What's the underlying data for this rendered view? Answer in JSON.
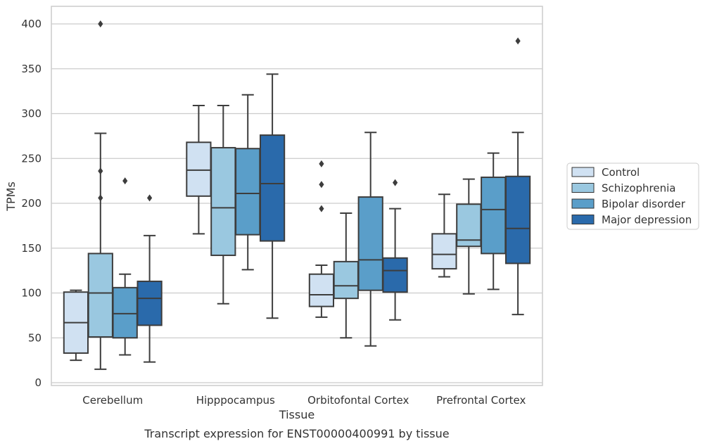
{
  "caption": "Transcript expression for ENST00000400991 by tissue",
  "chart_data": {
    "type": "box",
    "xlabel": "Tissue",
    "ylabel": "TPMs",
    "ylim": [
      0,
      400
    ],
    "yticks": [
      0,
      50,
      100,
      150,
      200,
      250,
      300,
      350,
      400
    ],
    "grid": true,
    "legend_position": "right",
    "categories": [
      "Cerebellum",
      "Hipppocampus",
      "Orbitofontal Cortex",
      "Prefrontal Cortex"
    ],
    "series": [
      {
        "name": "Control",
        "color": "#d0e1f2",
        "boxes": [
          {
            "whislo": 25,
            "q1": 33,
            "med": 67,
            "q3": 101,
            "whishi": 103,
            "fliers": []
          },
          {
            "whislo": 166,
            "q1": 208,
            "med": 237,
            "q3": 268,
            "whishi": 309,
            "fliers": []
          },
          {
            "whislo": 73,
            "q1": 85,
            "med": 98,
            "q3": 121,
            "whishi": 131,
            "fliers": [
              194,
              221,
              244
            ]
          },
          {
            "whislo": 118,
            "q1": 127,
            "med": 143,
            "q3": 166,
            "whishi": 210,
            "fliers": []
          }
        ]
      },
      {
        "name": "Schizophrenia",
        "color": "#9ac8e0",
        "boxes": [
          {
            "whislo": 15,
            "q1": 51,
            "med": 100,
            "q3": 144,
            "whishi": 278,
            "fliers": [
              206,
              236,
              400
            ]
          },
          {
            "whislo": 88,
            "q1": 142,
            "med": 195,
            "q3": 262,
            "whishi": 309,
            "fliers": []
          },
          {
            "whislo": 50,
            "q1": 94,
            "med": 108,
            "q3": 135,
            "whishi": 189,
            "fliers": []
          },
          {
            "whislo": 99,
            "q1": 152,
            "med": 159,
            "q3": 199,
            "whishi": 227,
            "fliers": []
          }
        ]
      },
      {
        "name": "Bipolar disorder",
        "color": "#5a9ec9",
        "boxes": [
          {
            "whislo": 31,
            "q1": 50,
            "med": 77,
            "q3": 106,
            "whishi": 121,
            "fliers": [
              225
            ]
          },
          {
            "whislo": 126,
            "q1": 165,
            "med": 211,
            "q3": 261,
            "whishi": 321,
            "fliers": []
          },
          {
            "whislo": 41,
            "q1": 103,
            "med": 137,
            "q3": 207,
            "whishi": 279,
            "fliers": []
          },
          {
            "whislo": 104,
            "q1": 144,
            "med": 193,
            "q3": 229,
            "whishi": 256,
            "fliers": []
          }
        ]
      },
      {
        "name": "Major depression",
        "color": "#2a6aab",
        "boxes": [
          {
            "whislo": 23,
            "q1": 64,
            "med": 94,
            "q3": 113,
            "whishi": 164,
            "fliers": [
              206
            ]
          },
          {
            "whislo": 72,
            "q1": 158,
            "med": 222,
            "q3": 276,
            "whishi": 344,
            "fliers": []
          },
          {
            "whislo": 70,
            "q1": 101,
            "med": 125,
            "q3": 139,
            "whishi": 194,
            "fliers": [
              223
            ]
          },
          {
            "whislo": 76,
            "q1": 133,
            "med": 172,
            "q3": 230,
            "whishi": 279,
            "fliers": [
              381
            ]
          }
        ]
      }
    ]
  }
}
